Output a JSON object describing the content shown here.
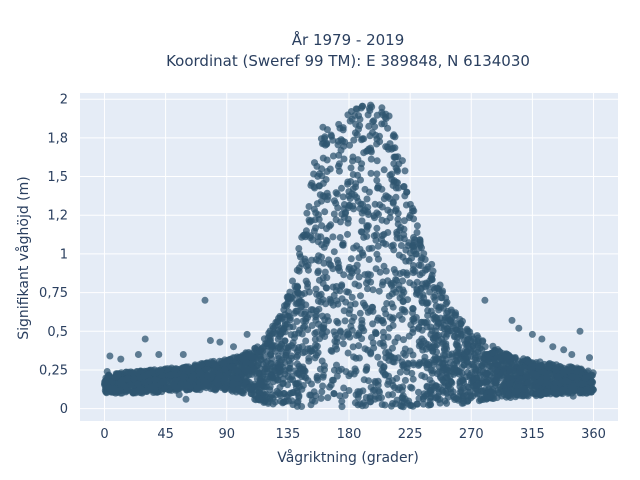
{
  "chart_data": {
    "type": "scatter",
    "title_line1": "År 1979 - 2019",
    "title_line2": "Koordinat (Sweref 99 TM): E 389848, N 6134030",
    "xlabel": "Vågriktning (grader)",
    "ylabel": "Signifikant våghöjd (m)",
    "xlim": [
      -18,
      378
    ],
    "ylim": [
      -0.08,
      2.04
    ],
    "x_ticks": [
      0,
      45,
      90,
      135,
      180,
      225,
      270,
      315,
      360
    ],
    "x_tick_labels": [
      "0",
      "45",
      "90",
      "135",
      "180",
      "225",
      "270",
      "315",
      "360"
    ],
    "y_ticks": [
      0,
      0.25,
      0.5,
      0.75,
      1,
      1.25,
      1.5,
      1.75,
      2
    ],
    "y_tick_labels": [
      "0",
      "0,25",
      "0,5",
      "0,75",
      "1",
      "1,2",
      "1,5",
      "1,8",
      "2"
    ],
    "grid": true,
    "marker_color": "#2f5670",
    "plot_bg": "#e5ecf6",
    "envelope": {
      "x": [
        0,
        10,
        20,
        30,
        45,
        60,
        75,
        90,
        100,
        110,
        120,
        130,
        140,
        150,
        155,
        160,
        170,
        180,
        190,
        200,
        210,
        220,
        225,
        230,
        240,
        250,
        260,
        270,
        280,
        290,
        300,
        315,
        330,
        345,
        360
      ],
      "y_max": [
        0.22,
        0.23,
        0.24,
        0.25,
        0.26,
        0.27,
        0.3,
        0.32,
        0.34,
        0.4,
        0.48,
        0.62,
        0.9,
        1.35,
        1.65,
        1.82,
        1.88,
        1.92,
        1.96,
        1.97,
        1.94,
        1.6,
        1.38,
        1.2,
        0.95,
        0.75,
        0.6,
        0.5,
        0.44,
        0.38,
        0.34,
        0.31,
        0.29,
        0.27,
        0.24
      ],
      "y_min": [
        0.1,
        0.1,
        0.1,
        0.1,
        0.11,
        0.12,
        0.12,
        0.12,
        0.1,
        0.06,
        0.03,
        0.02,
        0.01,
        0.01,
        0.01,
        0.01,
        0.01,
        0.01,
        0.01,
        0.01,
        0.01,
        0.01,
        0.01,
        0.01,
        0.02,
        0.02,
        0.03,
        0.04,
        0.05,
        0.06,
        0.07,
        0.08,
        0.09,
        0.1,
        0.1
      ]
    },
    "outliers": [
      {
        "x": 2,
        "y": 0.24
      },
      {
        "x": 4,
        "y": 0.34
      },
      {
        "x": 12,
        "y": 0.32
      },
      {
        "x": 25,
        "y": 0.35
      },
      {
        "x": 30,
        "y": 0.45
      },
      {
        "x": 40,
        "y": 0.35
      },
      {
        "x": 55,
        "y": 0.09
      },
      {
        "x": 58,
        "y": 0.35
      },
      {
        "x": 60,
        "y": 0.06
      },
      {
        "x": 74,
        "y": 0.7
      },
      {
        "x": 78,
        "y": 0.44
      },
      {
        "x": 85,
        "y": 0.43
      },
      {
        "x": 95,
        "y": 0.4
      },
      {
        "x": 105,
        "y": 0.48
      },
      {
        "x": 280,
        "y": 0.7
      },
      {
        "x": 300,
        "y": 0.57
      },
      {
        "x": 305,
        "y": 0.52
      },
      {
        "x": 315,
        "y": 0.48
      },
      {
        "x": 322,
        "y": 0.45
      },
      {
        "x": 330,
        "y": 0.4
      },
      {
        "x": 338,
        "y": 0.38
      },
      {
        "x": 344,
        "y": 0.35
      },
      {
        "x": 350,
        "y": 0.5
      },
      {
        "x": 357,
        "y": 0.33
      },
      {
        "x": 345,
        "y": 0.08
      },
      {
        "x": 355,
        "y": 0.1
      }
    ]
  }
}
